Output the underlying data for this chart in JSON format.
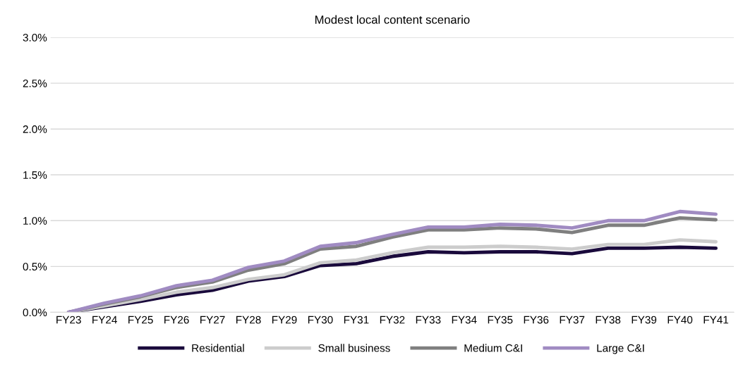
{
  "chart_data": {
    "type": "line",
    "title": "Modest local content scenario",
    "categories": [
      "FY23",
      "FY24",
      "FY25",
      "FY26",
      "FY27",
      "FY28",
      "FY29",
      "FY30",
      "FY31",
      "FY32",
      "FY33",
      "FY34",
      "FY35",
      "FY36",
      "FY37",
      "FY38",
      "FY39",
      "FY40",
      "FY41"
    ],
    "series": [
      {
        "name": "Residential",
        "color": "#1a0a3c",
        "values": [
          0,
          0.06,
          0.12,
          0.19,
          0.24,
          0.34,
          0.39,
          0.51,
          0.53,
          0.61,
          0.66,
          0.65,
          0.66,
          0.66,
          0.64,
          0.7,
          0.7,
          0.71,
          0.7
        ]
      },
      {
        "name": "Small business",
        "color": "#cccccc",
        "values": [
          0,
          0.07,
          0.14,
          0.22,
          0.27,
          0.36,
          0.41,
          0.54,
          0.57,
          0.65,
          0.71,
          0.71,
          0.72,
          0.71,
          0.69,
          0.74,
          0.74,
          0.79,
          0.77
        ]
      },
      {
        "name": "Medium C&I",
        "color": "#7f7f7f",
        "values": [
          0,
          0.09,
          0.17,
          0.27,
          0.33,
          0.46,
          0.53,
          0.69,
          0.72,
          0.82,
          0.9,
          0.9,
          0.92,
          0.91,
          0.87,
          0.95,
          0.95,
          1.03,
          1.01
        ]
      },
      {
        "name": "Large C&I",
        "color": "#a08bc2",
        "values": [
          0,
          0.1,
          0.18,
          0.29,
          0.35,
          0.49,
          0.56,
          0.72,
          0.76,
          0.85,
          0.93,
          0.93,
          0.96,
          0.95,
          0.92,
          1.0,
          1.0,
          1.1,
          1.07
        ]
      }
    ],
    "ylim": [
      0,
      3.0
    ],
    "yticks": [
      {
        "value": 0,
        "label": "0.0%"
      },
      {
        "value": 0.5,
        "label": "0.5%"
      },
      {
        "value": 1.0,
        "label": "1.0%"
      },
      {
        "value": 1.5,
        "label": "1.5%"
      },
      {
        "value": 2.0,
        "label": "2.0%"
      },
      {
        "value": 2.5,
        "label": "2.5%"
      },
      {
        "value": 3.0,
        "label": "3.0%"
      }
    ],
    "grid": "y",
    "legend": "bottom",
    "marker": "none",
    "line_style": "solid"
  }
}
